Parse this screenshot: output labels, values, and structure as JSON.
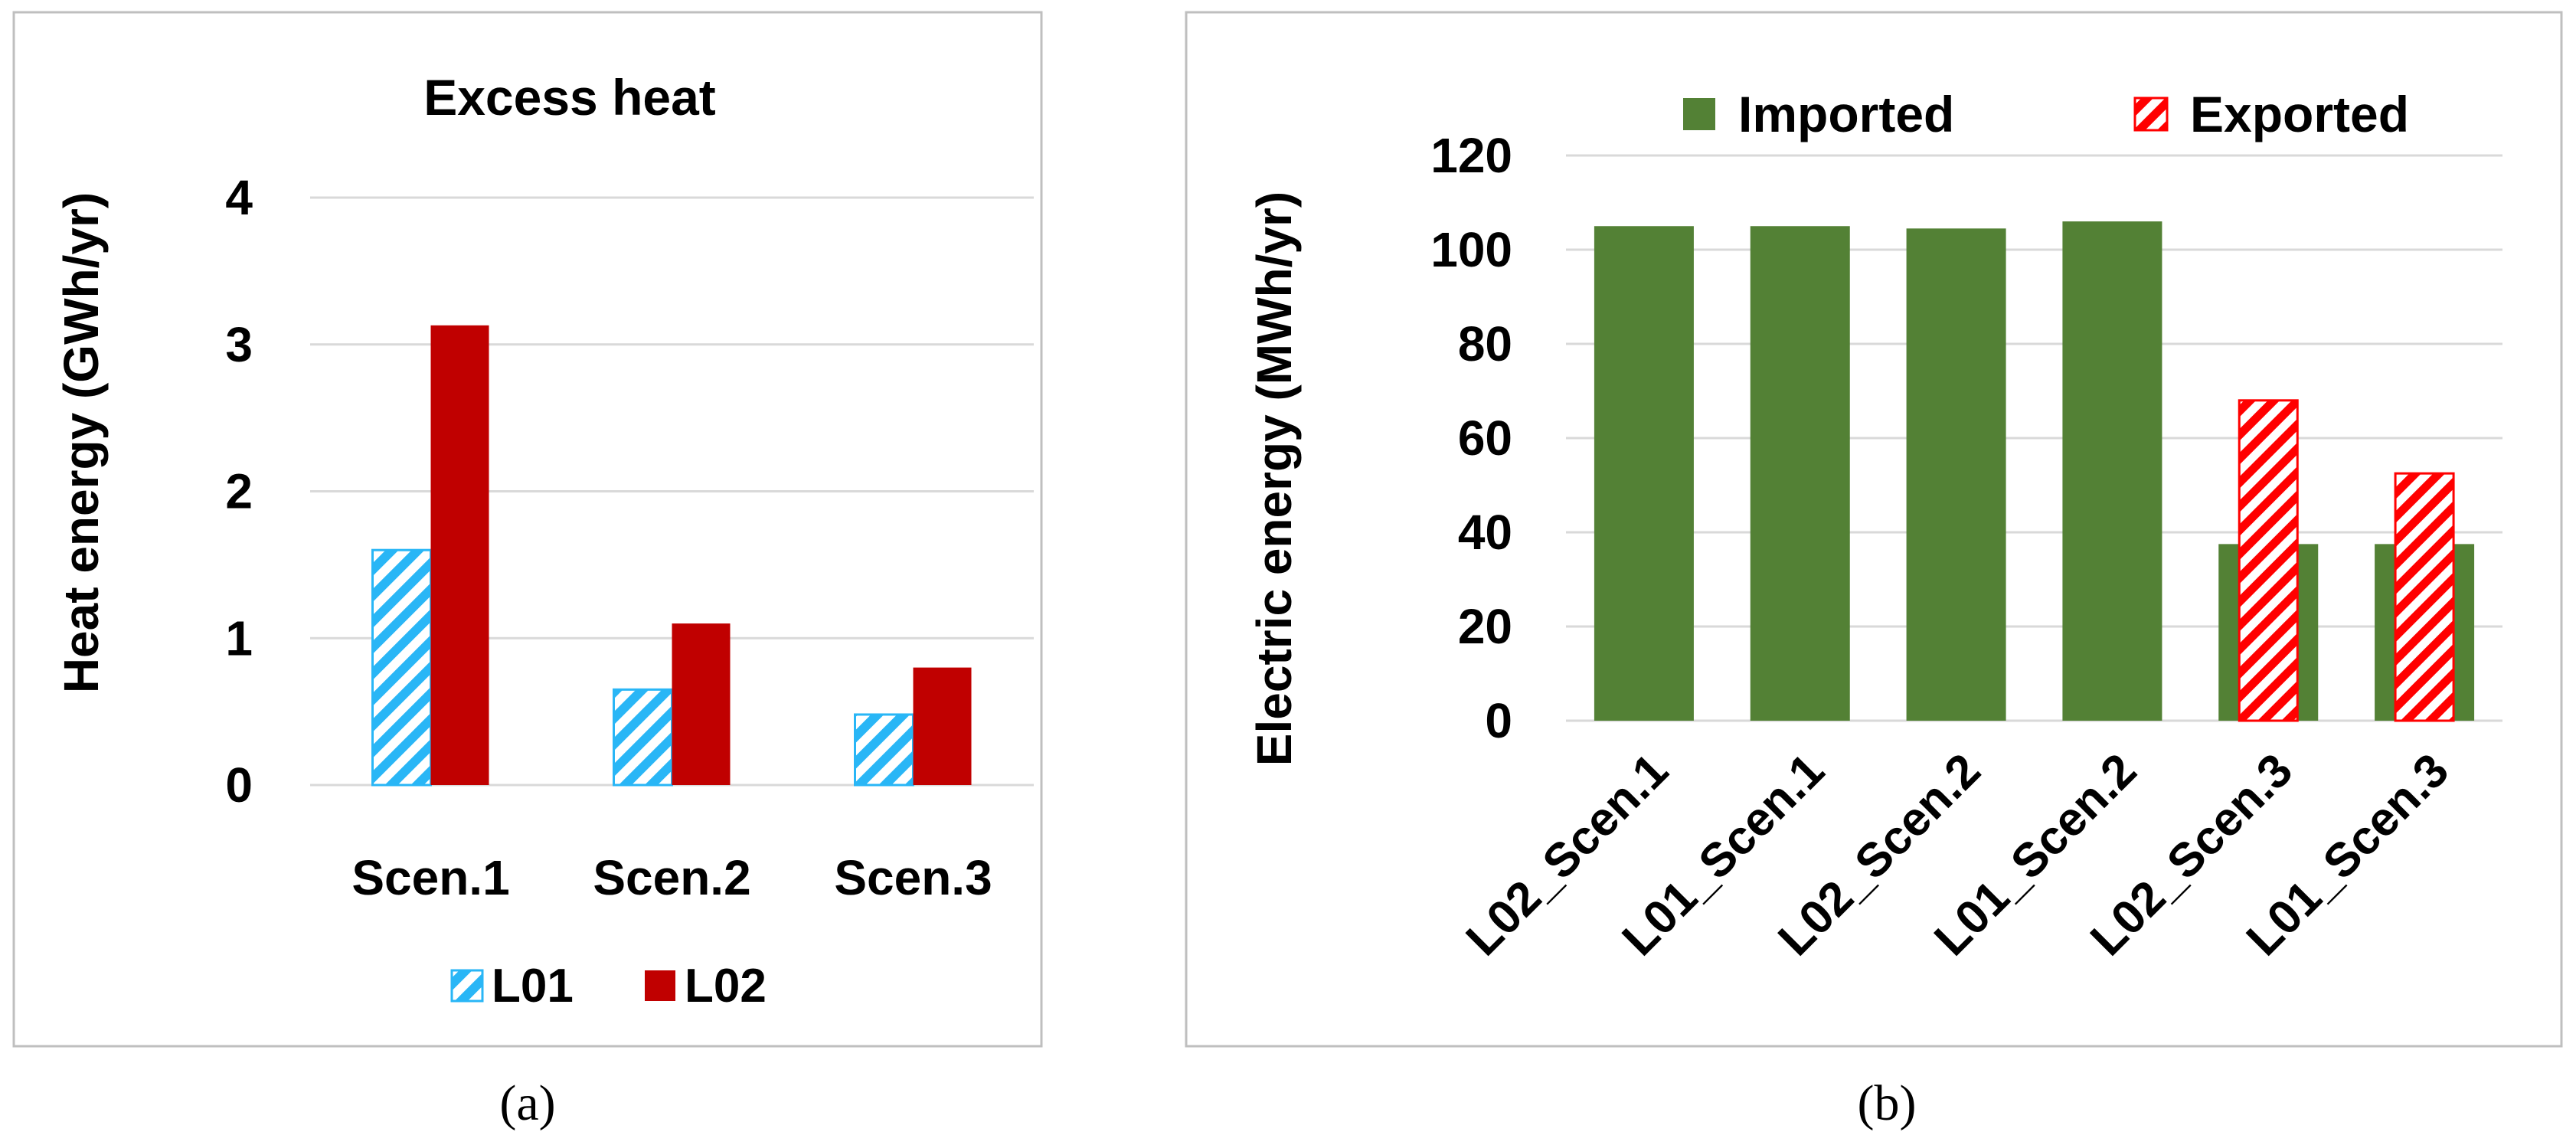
{
  "colors": {
    "l01": "#29b6f6",
    "l02": "#c00000",
    "imported": "#538135",
    "exported": "#ff0000",
    "grid": "#d9d9d9",
    "frame": "#bfbfbf"
  },
  "chart_data": [
    {
      "type": "bar",
      "panel_label": "(a)",
      "title": "Excess heat",
      "xlabel": "",
      "ylabel": "Heat energy (GWh/yr)",
      "ylim": [
        0,
        4
      ],
      "yticks": [
        "0",
        "1",
        "2",
        "3",
        "4"
      ],
      "grid": true,
      "legend_position": "bottom",
      "categories": [
        "Scen.1",
        "Scen.2",
        "Scen.3"
      ],
      "series": [
        {
          "name": "L01",
          "values": [
            1.6,
            0.65,
            0.48
          ],
          "pattern": "hatched"
        },
        {
          "name": "L02",
          "values": [
            3.13,
            1.1,
            0.8
          ],
          "pattern": "solid"
        }
      ]
    },
    {
      "type": "bar",
      "panel_label": "(b)",
      "title": "",
      "xlabel": "",
      "ylabel": "Electric energy (MWh/yr)",
      "ylim": [
        0,
        120
      ],
      "yticks": [
        "0",
        "20",
        "40",
        "60",
        "80",
        "100",
        "120"
      ],
      "grid": true,
      "legend_position": "top",
      "categories": [
        "L02_Scen.1",
        "L01_Scen.1",
        "L02_Scen.2",
        "L01_Scen.2",
        "L02_Scen.3",
        "L01_Scen.3"
      ],
      "series": [
        {
          "name": "Imported",
          "values": [
            105,
            105,
            104.5,
            106,
            37.5,
            37.5
          ],
          "pattern": "solid"
        },
        {
          "name": "Exported",
          "values": [
            0,
            0,
            0,
            0,
            68,
            52.5
          ],
          "pattern": "hatched"
        }
      ]
    }
  ]
}
